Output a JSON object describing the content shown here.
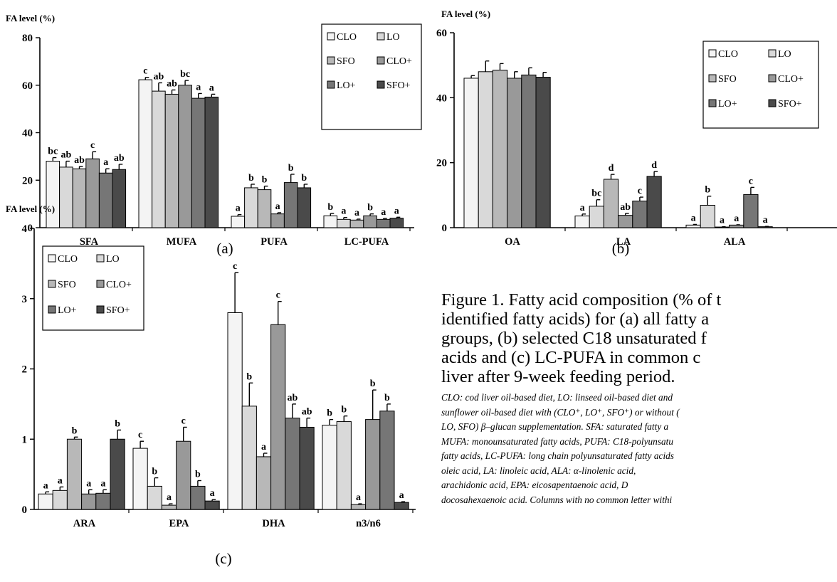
{
  "legend_labels": [
    "CLO",
    "LO",
    "SFO",
    "CLO+",
    "LO+",
    "SFO+"
  ],
  "series_colors": [
    "#f4f4f4",
    "#d9d9d9",
    "#b8b8b8",
    "#999999",
    "#767676",
    "#4a4a4a"
  ],
  "chart_data": [
    {
      "id": "a",
      "type": "bar",
      "panel_label": "(a)",
      "ylabel": "FA level (%)",
      "ylim": [
        0,
        80
      ],
      "yticks": [
        0,
        20,
        40,
        60,
        80
      ],
      "categories": [
        "SFA",
        "MUFA",
        "PUFA",
        "LC-PUFA"
      ],
      "legend": "top-right, 3 rows x 2 columns",
      "series": [
        {
          "name": "CLO",
          "values": [
            28,
            62.3,
            4.8,
            5
          ],
          "errors": [
            1.5,
            1,
            0.7,
            1
          ],
          "letters": [
            "bc",
            "c",
            "a",
            "b"
          ]
        },
        {
          "name": "LO",
          "values": [
            25.5,
            57.5,
            16.8,
            3.5
          ],
          "errors": [
            2.5,
            3.5,
            1.5,
            0.8
          ],
          "letters": [
            "ab",
            "ab",
            "b",
            "a"
          ]
        },
        {
          "name": "SFO",
          "values": [
            24.8,
            56.2,
            16,
            3.2
          ],
          "errors": [
            1,
            1.8,
            1.5,
            0.4
          ],
          "letters": [
            "ab",
            "ab",
            "b",
            "a"
          ]
        },
        {
          "name": "CLO+",
          "values": [
            29,
            60,
            5.8,
            5
          ],
          "errors": [
            3,
            2,
            0.5,
            0.8
          ],
          "letters": [
            "c",
            "bc",
            "a",
            "b"
          ]
        },
        {
          "name": "LO+",
          "values": [
            23,
            54.5,
            19,
            3.5
          ],
          "errors": [
            1.8,
            2,
            3.5,
            0.4
          ],
          "letters": [
            "a",
            "a",
            "b",
            "a"
          ]
        },
        {
          "name": "SFO+",
          "values": [
            24.5,
            55,
            16.8,
            4
          ],
          "errors": [
            2.2,
            1.2,
            1.5,
            0.4
          ],
          "letters": [
            "ab",
            "a",
            "b",
            "a"
          ]
        }
      ]
    },
    {
      "id": "b",
      "type": "bar",
      "panel_label": "(b)",
      "ylabel": "FA level (%)",
      "ylim": [
        0,
        60
      ],
      "yticks": [
        0,
        20,
        40,
        60
      ],
      "categories": [
        "OA",
        "LA",
        "ALA"
      ],
      "legend": "top-right, 3 rows x 2 columns",
      "series": [
        {
          "name": "CLO",
          "values": [
            46,
            3.6,
            0.8
          ],
          "errors": [
            0.8,
            0.6,
            0.2
          ],
          "letters": [
            "",
            "a",
            "a"
          ]
        },
        {
          "name": "LO",
          "values": [
            48,
            6.6,
            6.9
          ],
          "errors": [
            3.3,
            2,
            2.8
          ],
          "letters": [
            "",
            "bc",
            "b"
          ]
        },
        {
          "name": "SFO",
          "values": [
            48.5,
            14.9,
            0.2
          ],
          "errors": [
            2,
            1.5,
            0.1
          ],
          "letters": [
            "",
            "d",
            "a"
          ]
        },
        {
          "name": "CLO+",
          "values": [
            46,
            3.8,
            0.8
          ],
          "errors": [
            2,
            0.6,
            0.1
          ],
          "letters": [
            "",
            "ab",
            "a"
          ]
        },
        {
          "name": "LO+",
          "values": [
            47,
            8.2,
            10.2
          ],
          "errors": [
            2.2,
            1.2,
            2.2
          ],
          "letters": [
            "",
            "c",
            "c"
          ]
        },
        {
          "name": "SFO+",
          "values": [
            46.3,
            15.8,
            0.3
          ],
          "errors": [
            1.5,
            1.5,
            0.1
          ],
          "letters": [
            "",
            "d",
            "a"
          ]
        }
      ]
    },
    {
      "id": "c",
      "type": "bar",
      "panel_label": "(c)",
      "ylabel": "FA level (%)",
      "ylim": [
        0,
        4
      ],
      "yticks": [
        0,
        1,
        2,
        3,
        4
      ],
      "categories": [
        "ARA",
        "EPA",
        "DHA",
        "n3/n6"
      ],
      "legend": "top-left, 3 rows x 2 columns",
      "series": [
        {
          "name": "CLO",
          "values": [
            0.22,
            0.87,
            2.8,
            1.2
          ],
          "errors": [
            0.03,
            0.1,
            0.57,
            0.08
          ],
          "letters": [
            "a",
            "c",
            "c",
            "b"
          ]
        },
        {
          "name": "LO",
          "values": [
            0.27,
            0.33,
            1.47,
            1.25
          ],
          "errors": [
            0.05,
            0.12,
            0.33,
            0.08
          ],
          "letters": [
            "a",
            "b",
            "b",
            "b"
          ]
        },
        {
          "name": "SFO",
          "values": [
            1.0,
            0.06,
            0.75,
            0.07
          ],
          "errors": [
            0.03,
            0.02,
            0.05,
            0.01
          ],
          "letters": [
            "b",
            "a",
            "a",
            "a"
          ]
        },
        {
          "name": "CLO+",
          "values": [
            0.22,
            0.97,
            2.63,
            1.28
          ],
          "errors": [
            0.06,
            0.2,
            0.33,
            0.42
          ],
          "letters": [
            "a",
            "c",
            "c",
            "b"
          ]
        },
        {
          "name": "LO+",
          "values": [
            0.23,
            0.33,
            1.3,
            1.4
          ],
          "errors": [
            0.05,
            0.08,
            0.2,
            0.1
          ],
          "letters": [
            "a",
            "b",
            "ab",
            "b"
          ]
        },
        {
          "name": "SFO+",
          "values": [
            1.0,
            0.12,
            1.17,
            0.1
          ],
          "errors": [
            0.13,
            0.02,
            0.13,
            0.01
          ],
          "letters": [
            "b",
            "a",
            "ab",
            "a"
          ]
        }
      ]
    }
  ],
  "caption": {
    "main_lines": [
      "Figure 1. Fatty acid composition (% of t",
      "identified fatty acids) for (a) all fatty a",
      "groups, (b) selected C18 unsaturated f",
      "acids and (c) LC-PUFA in common c",
      "liver after 9-week feeding period."
    ],
    "note_lines": [
      "CLO: cod liver oil-based diet, LO: linseed oil-based diet and",
      "sunflower oil-based diet with (CLO⁺, LO⁺, SFO⁺) or without (",
      "LO, SFO) β–glucan supplementation. SFA: saturated fatty a",
      "MUFA: monounsaturated fatty acids, PUFA: C18-polyunsatu",
      "fatty acids, LC-PUFA: long chain polyunsaturated fatty acids",
      "oleic acid, LA: linoleic acid, ALA: α-linolenic acid,",
      "arachidonic acid, EPA: eicosapentaenoic acid, D",
      "docosahexaenoic acid. Columns with no common letter withi"
    ]
  }
}
